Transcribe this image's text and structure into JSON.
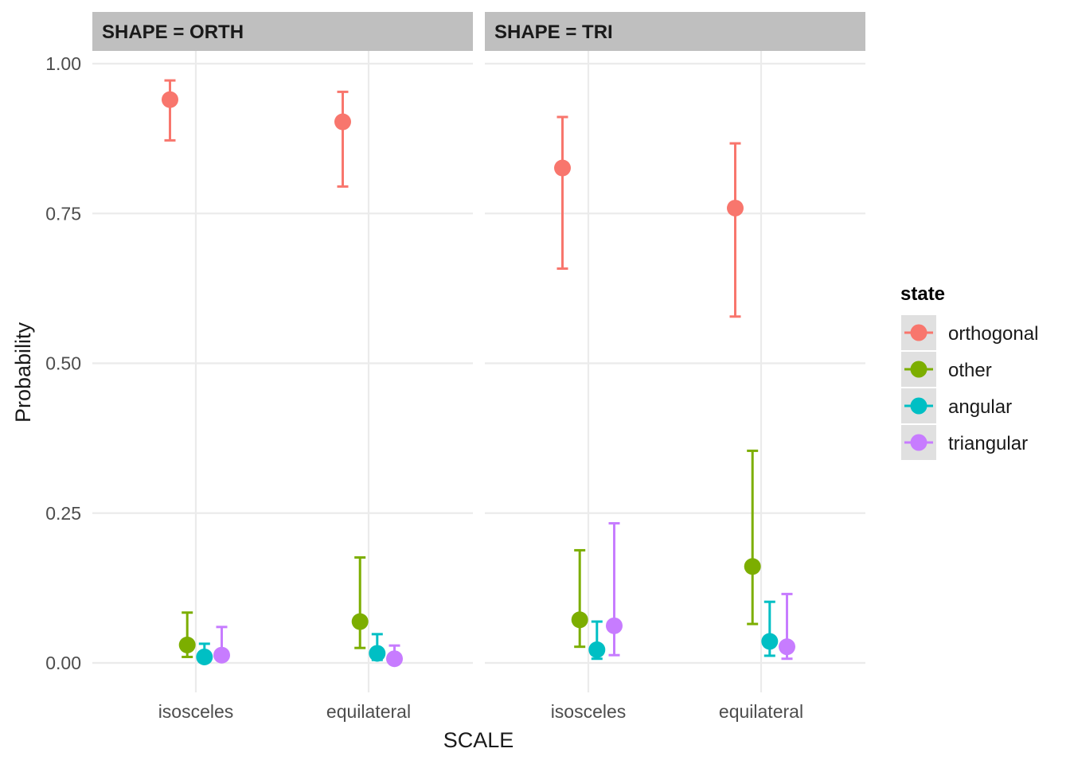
{
  "chart_data": {
    "type": "scatter",
    "subtype": "pointrange with error bars, faceted",
    "facets": [
      {
        "label": "SHAPE = ORTH",
        "points": {
          "isosceles": {
            "orthogonal": {
              "y": 0.94,
              "lo": 0.872,
              "hi": 0.972
            },
            "other": {
              "y": 0.03,
              "lo": 0.01,
              "hi": 0.084
            },
            "angular": {
              "y": 0.01,
              "lo": 0.003,
              "hi": 0.032
            },
            "triangular": {
              "y": 0.013,
              "lo": 0.005,
              "hi": 0.06
            }
          },
          "equilateral": {
            "orthogonal": {
              "y": 0.903,
              "lo": 0.795,
              "hi": 0.953
            },
            "other": {
              "y": 0.069,
              "lo": 0.025,
              "hi": 0.176
            },
            "angular": {
              "y": 0.016,
              "lo": 0.005,
              "hi": 0.048
            },
            "triangular": {
              "y": 0.007,
              "lo": 0.002,
              "hi": 0.029
            }
          }
        }
      },
      {
        "label": "SHAPE = TRI",
        "points": {
          "isosceles": {
            "orthogonal": {
              "y": 0.826,
              "lo": 0.658,
              "hi": 0.911
            },
            "other": {
              "y": 0.072,
              "lo": 0.027,
              "hi": 0.188
            },
            "angular": {
              "y": 0.022,
              "lo": 0.007,
              "hi": 0.069
            },
            "triangular": {
              "y": 0.062,
              "lo": 0.013,
              "hi": 0.233
            }
          },
          "equilateral": {
            "orthogonal": {
              "y": 0.759,
              "lo": 0.578,
              "hi": 0.867
            },
            "other": {
              "y": 0.161,
              "lo": 0.065,
              "hi": 0.354
            },
            "angular": {
              "y": 0.036,
              "lo": 0.012,
              "hi": 0.102
            },
            "triangular": {
              "y": 0.027,
              "lo": 0.007,
              "hi": 0.115
            }
          }
        }
      }
    ],
    "categories": [
      "isosceles",
      "equilateral"
    ],
    "series": [
      {
        "name": "orthogonal",
        "color": "#F8766D"
      },
      {
        "name": "other",
        "color": "#7CAE00"
      },
      {
        "name": "angular",
        "color": "#00BFC4"
      },
      {
        "name": "triangular",
        "color": "#C77CFF"
      }
    ],
    "xlabel": "SCALE",
    "ylabel": "Probability",
    "ylim": [
      -0.05,
      1.02
    ],
    "yticks": [
      "0.00",
      "0.25",
      "0.50",
      "0.75",
      "1.00"
    ],
    "ytick_values": [
      0,
      0.25,
      0.5,
      0.75,
      1.0
    ],
    "legend": {
      "title": "state",
      "placement": "right"
    },
    "grid": true
  }
}
